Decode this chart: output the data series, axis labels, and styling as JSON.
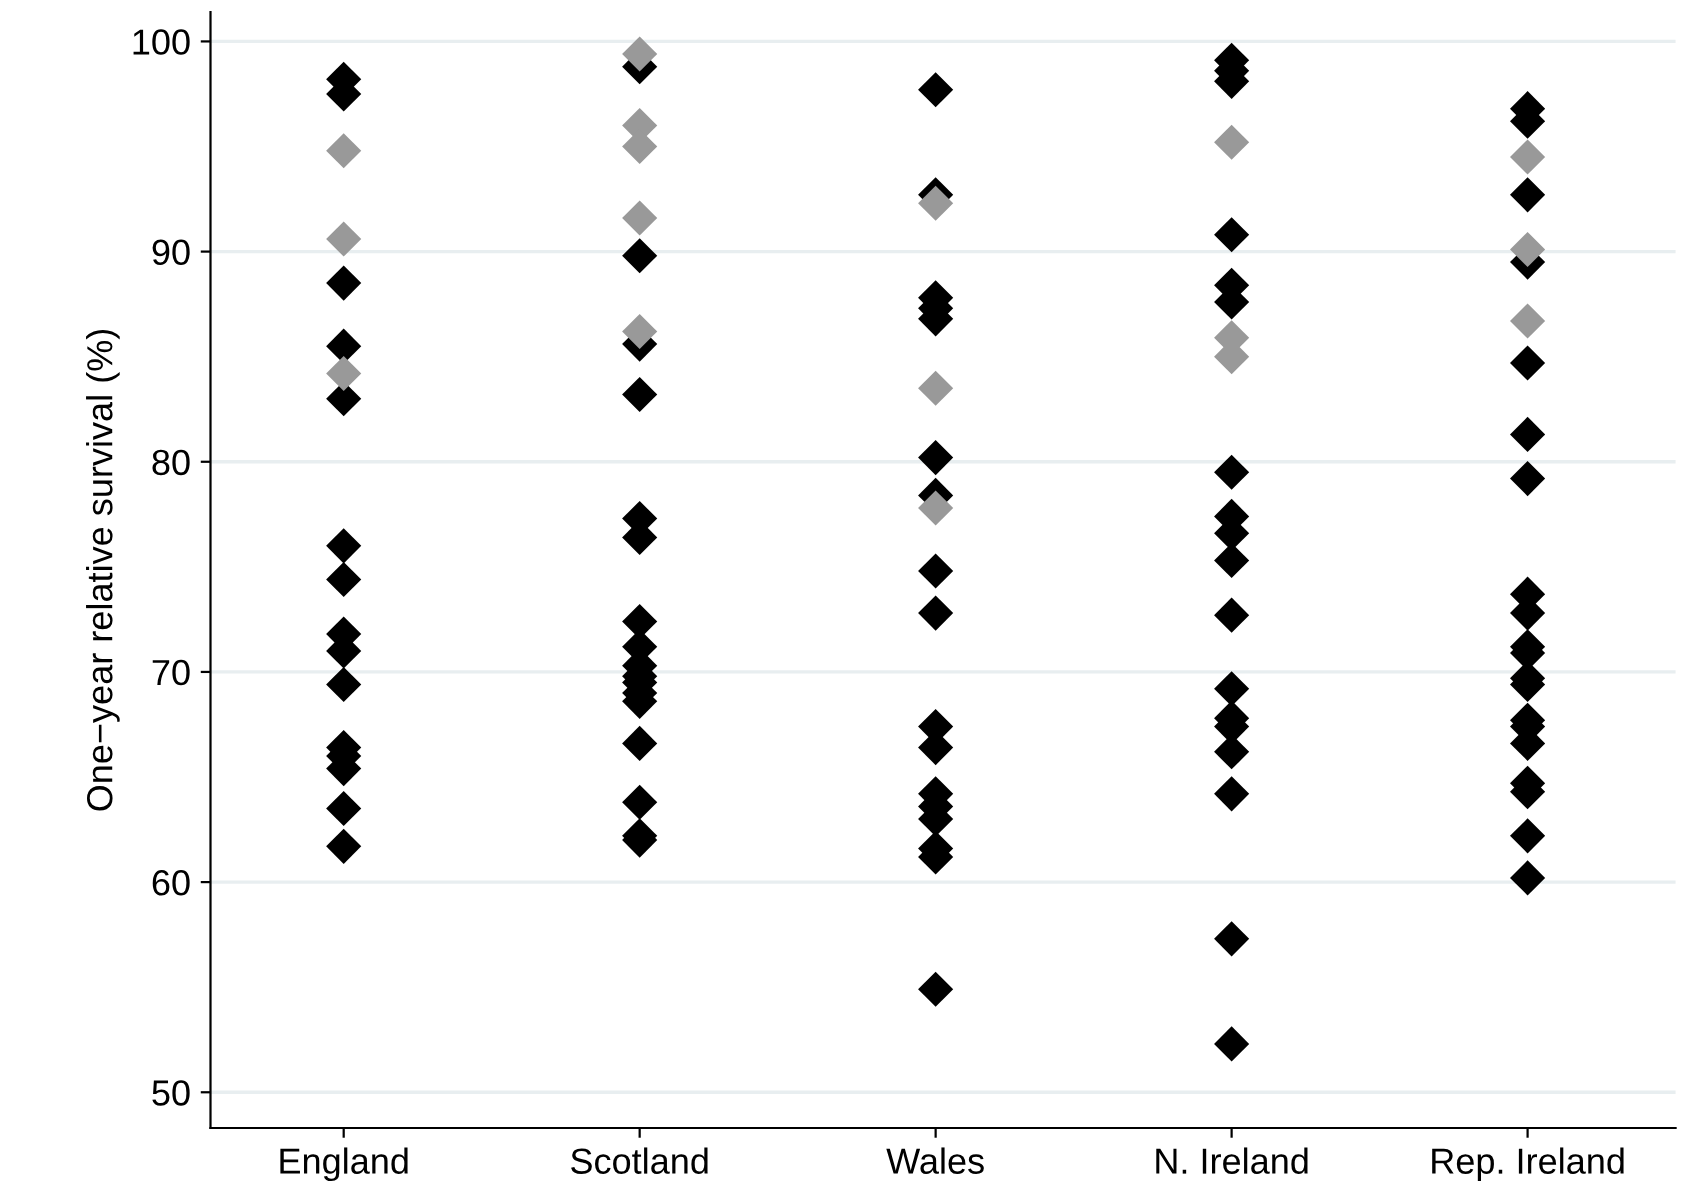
{
  "chart_data": {
    "type": "scatter",
    "ylabel": "One−year relative survival (%)",
    "categories": [
      "England",
      "Scotland",
      "Wales",
      "N. Ireland",
      "Rep. Ireland"
    ],
    "series": [
      {
        "color": "#000000",
        "x": [
          "England",
          "England",
          "England",
          "England",
          "England",
          "England",
          "England",
          "England",
          "England",
          "England",
          "England",
          "England",
          "England",
          "England",
          "England",
          "Scotland",
          "Scotland",
          "Scotland",
          "Scotland",
          "Scotland",
          "Scotland",
          "Scotland",
          "Scotland",
          "Scotland",
          "Scotland",
          "Scotland",
          "Scotland",
          "Scotland",
          "Scotland",
          "Scotland",
          "Scotland",
          "Scotland",
          "Wales",
          "Wales",
          "Wales",
          "Wales",
          "Wales",
          "Wales",
          "Wales",
          "Wales",
          "Wales",
          "Wales",
          "Wales",
          "Wales",
          "Wales",
          "Wales",
          "Wales",
          "Wales",
          "Wales",
          "N. Ireland",
          "N. Ireland",
          "N. Ireland",
          "N. Ireland",
          "N. Ireland",
          "N. Ireland",
          "N. Ireland",
          "N. Ireland",
          "N. Ireland",
          "N. Ireland",
          "N. Ireland",
          "N. Ireland",
          "N. Ireland",
          "N. Ireland",
          "N. Ireland",
          "N. Ireland",
          "N. Ireland",
          "N. Ireland",
          "Rep. Ireland",
          "Rep. Ireland",
          "Rep. Ireland",
          "Rep. Ireland",
          "Rep. Ireland",
          "Rep. Ireland",
          "Rep. Ireland",
          "Rep. Ireland",
          "Rep. Ireland",
          "Rep. Ireland",
          "Rep. Ireland",
          "Rep. Ireland",
          "Rep. Ireland",
          "Rep. Ireland",
          "Rep. Ireland",
          "Rep. Ireland",
          "Rep. Ireland",
          "Rep. Ireland",
          "Rep. Ireland",
          "Rep. Ireland"
        ],
        "values": [
          98.2,
          97.5,
          88.5,
          85.5,
          83.0,
          76.0,
          74.4,
          71.8,
          71.0,
          69.4,
          66.4,
          66.0,
          65.4,
          63.5,
          61.7,
          98.8,
          89.8,
          85.6,
          83.2,
          77.3,
          76.4,
          72.4,
          71.2,
          70.3,
          69.8,
          69.5,
          69.0,
          68.6,
          66.6,
          63.8,
          62.2,
          62.0,
          97.7,
          92.7,
          87.8,
          87.3,
          86.8,
          80.2,
          78.4,
          74.8,
          72.8,
          67.4,
          66.4,
          64.2,
          63.6,
          63.0,
          61.6,
          61.2,
          54.9,
          99.1,
          98.6,
          98.1,
          90.8,
          88.4,
          87.6,
          79.5,
          77.4,
          76.6,
          75.3,
          72.7,
          69.2,
          67.8,
          67.4,
          66.2,
          64.2,
          57.3,
          52.3,
          96.8,
          96.2,
          92.7,
          89.5,
          84.7,
          81.3,
          79.2,
          73.7,
          72.8,
          71.2,
          70.9,
          69.7,
          69.4,
          67.7,
          67.4,
          66.6,
          64.7,
          64.3,
          62.2,
          60.2
        ]
      },
      {
        "color": "#999999",
        "x": [
          "England",
          "England",
          "England",
          "Scotland",
          "Scotland",
          "Scotland",
          "Scotland",
          "Scotland",
          "Wales",
          "Wales",
          "Wales",
          "N. Ireland",
          "N. Ireland",
          "N. Ireland",
          "Rep. Ireland",
          "Rep. Ireland",
          "Rep. Ireland"
        ],
        "values": [
          94.8,
          90.6,
          84.2,
          99.4,
          96.0,
          95.0,
          91.6,
          86.2,
          92.3,
          83.5,
          77.8,
          95.2,
          85.9,
          85.0,
          94.5,
          90.1,
          86.7
        ]
      }
    ],
    "ylim": [
      48.3,
      101.4
    ],
    "yticks": [
      50,
      60,
      70,
      80,
      90,
      100
    ],
    "grid": "y",
    "marker": "diamond"
  }
}
